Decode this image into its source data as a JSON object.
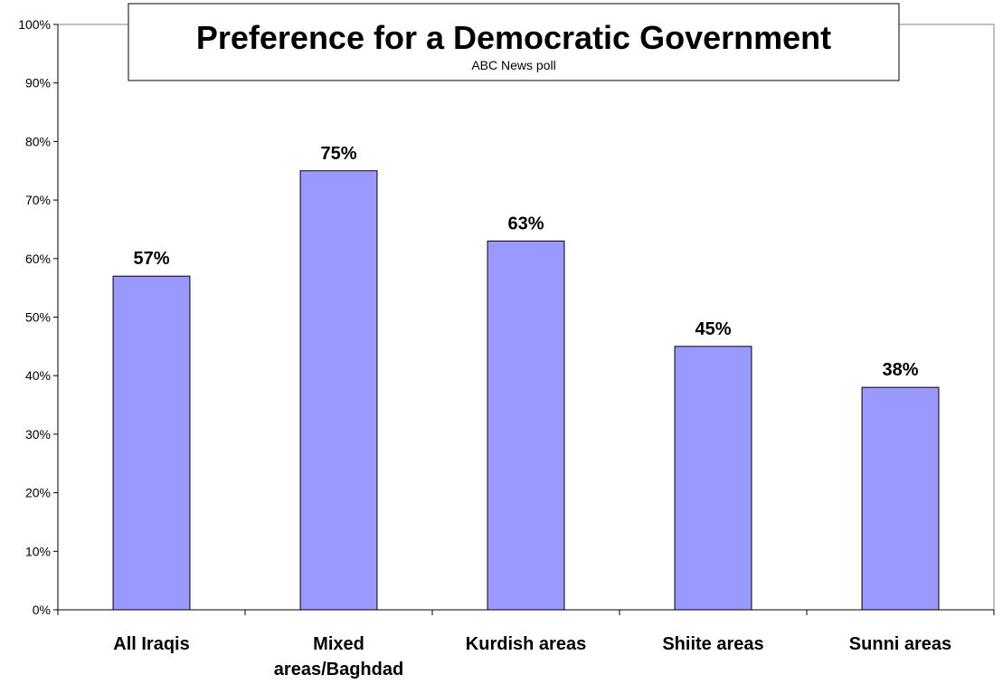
{
  "chart_data": {
    "type": "bar",
    "title": "Preference for a Democratic Government",
    "subtitle": "ABC News poll",
    "categories": [
      "All Iraqis",
      "Mixed areas/Baghdad",
      "Kurdish areas",
      "Shiite areas",
      "Sunni areas"
    ],
    "category_lines": [
      [
        "All Iraqis"
      ],
      [
        "Mixed",
        "areas/Baghdad"
      ],
      [
        "Kurdish areas"
      ],
      [
        "Shiite areas"
      ],
      [
        "Sunni areas"
      ]
    ],
    "values": [
      57,
      75,
      63,
      45,
      38
    ],
    "data_labels": [
      "57%",
      "75%",
      "63%",
      "45%",
      "38%"
    ],
    "y_ticks": [
      "0%",
      "10%",
      "20%",
      "30%",
      "40%",
      "50%",
      "60%",
      "70%",
      "80%",
      "90%",
      "100%"
    ],
    "ylim": [
      0,
      100
    ],
    "xlabel": "",
    "ylabel": "",
    "grid": false,
    "legend": "none",
    "bar_color": "#9999ff",
    "bar_edge_color": "#000000"
  }
}
